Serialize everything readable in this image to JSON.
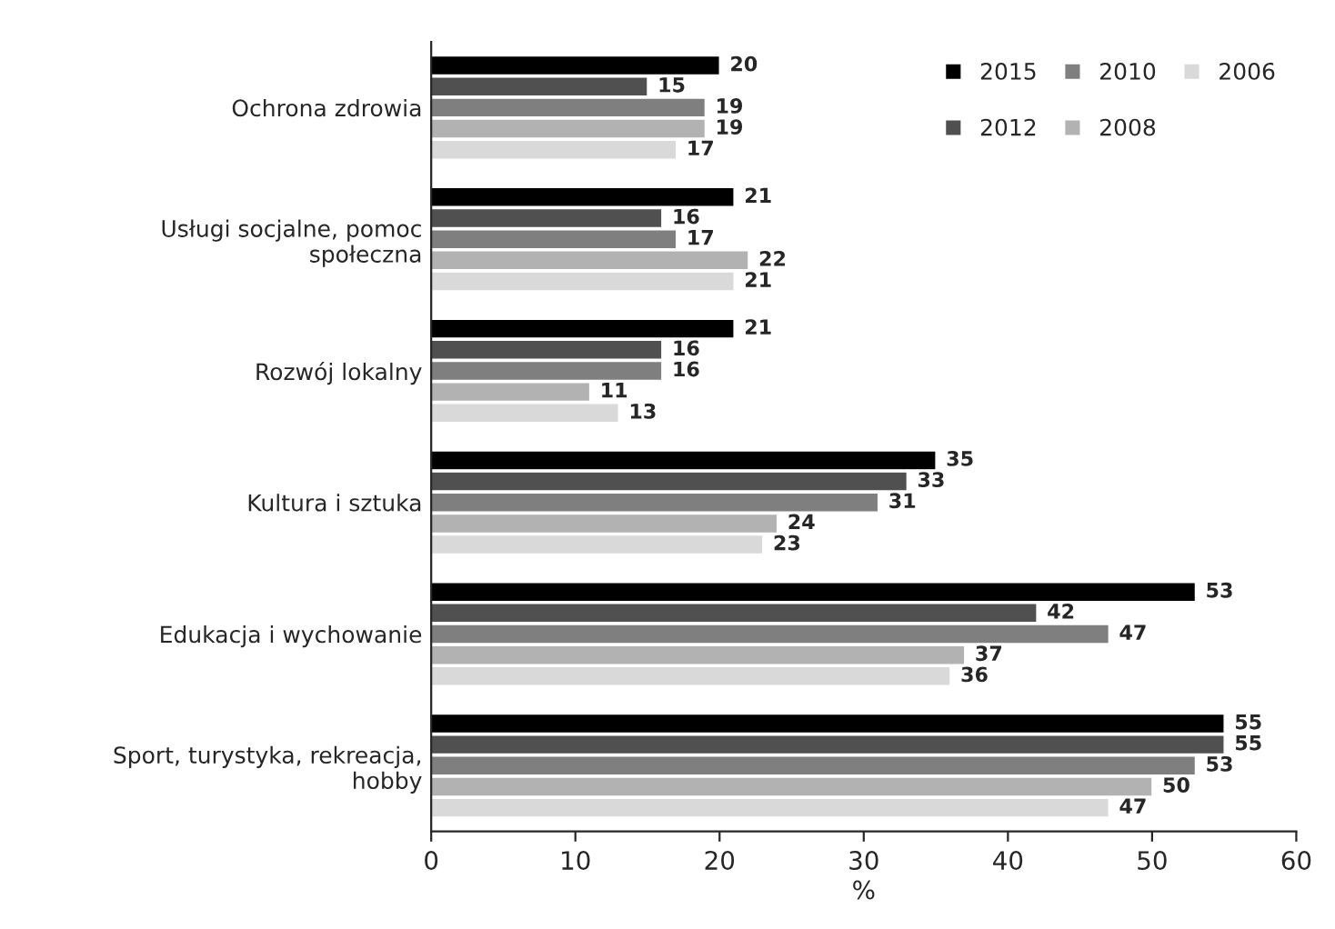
{
  "chart_data": {
    "type": "bar",
    "orientation": "horizontal",
    "xlabel": "%",
    "categories": [
      "Ochrona zdrowia",
      "Usługi socjalne, pomoc\nspołeczna",
      "Rozwój lokalny",
      "Kultura i sztuka",
      "Edukacja i wychowanie",
      "Sport, turystyka, rekreacja,\nhobby"
    ],
    "series": [
      {
        "name": "2015",
        "color": "#000000",
        "values": [
          20,
          21,
          21,
          35,
          53,
          55
        ]
      },
      {
        "name": "2012",
        "color": "#505050",
        "values": [
          15,
          16,
          16,
          33,
          42,
          55
        ]
      },
      {
        "name": "2010",
        "color": "#7f7f7f",
        "values": [
          19,
          17,
          16,
          31,
          47,
          53
        ]
      },
      {
        "name": "2008",
        "color": "#b2b2b2",
        "values": [
          19,
          22,
          11,
          24,
          37,
          50
        ]
      },
      {
        "name": "2006",
        "color": "#d9d9d9",
        "values": [
          17,
          21,
          13,
          23,
          36,
          47
        ]
      }
    ],
    "xlim": [
      0,
      60
    ],
    "xticks": [
      0,
      10,
      20,
      30,
      40,
      50,
      60
    ],
    "data_labels": true,
    "legend": "top right",
    "grid": false
  }
}
